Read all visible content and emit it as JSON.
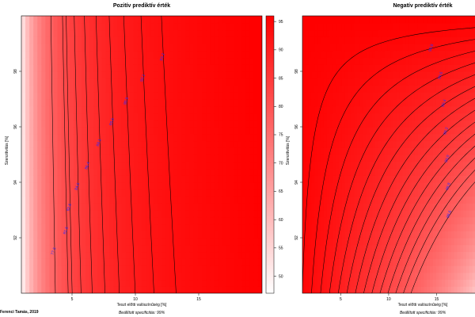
{
  "credit": "Ferenci Tamás, 2019",
  "colors": {
    "high": "#ff0000",
    "low": "#ffffff",
    "contour": "#000000",
    "contour_label": "#2a2aff"
  },
  "chart_data": [
    {
      "type": "heatmap",
      "title": "Pozitív prediktív érték",
      "xlabel": "Teszt előtti valószínűség [%]",
      "subtitle": "Beállított specificitás: 99%",
      "ylabel": "Szenzitivitás [%]",
      "specificity": 99,
      "xlim": [
        1,
        20
      ],
      "ylim": [
        90,
        100
      ],
      "xticks": [
        5,
        10,
        15
      ],
      "yticks": [
        92,
        94,
        96,
        98
      ],
      "contour_levels": [
        77.5,
        81.6,
        82.6,
        84.5,
        86.4,
        88.1,
        89.6,
        90.9,
        92.1,
        93.2
      ],
      "colorbar": {
        "range": [
          47,
          96
        ],
        "ticks": [
          50,
          55,
          60,
          65,
          70,
          75,
          80,
          85,
          90,
          95
        ]
      }
    },
    {
      "type": "heatmap",
      "title": "Negatív prediktív érték",
      "xlabel": "Teszt előtti valószínűség [%]",
      "subtitle": "Beállított specificitás: 99%",
      "ylabel": "Szenzitivitás [%]",
      "specificity": 99,
      "xlim": [
        1,
        20
      ],
      "ylim": [
        90,
        100
      ],
      "xticks": [
        5,
        10,
        15
      ],
      "yticks": [
        92,
        94,
        96,
        98
      ],
      "contour_levels": [
        99.9,
        99.8,
        99.7,
        99.6,
        99.5,
        99.4,
        99.3,
        99.2,
        99.1,
        99.0,
        98.9,
        98.8,
        98.7,
        98.6
      ],
      "labeled_levels": [
        99.8,
        99.6,
        99.4,
        99.2,
        99.0,
        98.8,
        98.6
      ]
    }
  ]
}
